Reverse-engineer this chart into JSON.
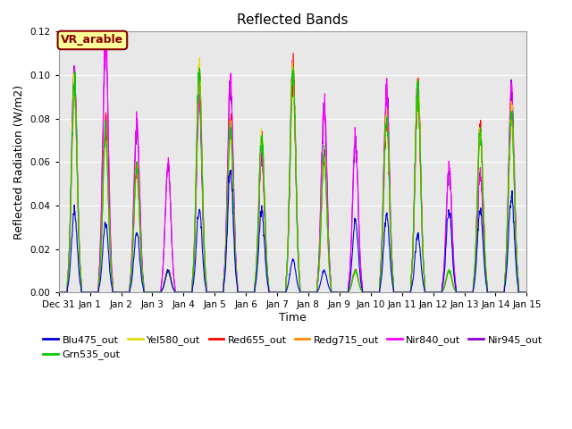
{
  "title": "Reflected Bands",
  "ylabel": "Reflected Radiation (W/m2)",
  "xlabel": "Time",
  "ylim": [
    0,
    0.12
  ],
  "background_color": "#e8e8e8",
  "annotation_text": "VR_arable",
  "annotation_facecolor": "#ffff99",
  "annotation_edgecolor": "#8b0000",
  "annotation_textcolor": "#8b0000",
  "series": [
    {
      "label": "Blu475_out",
      "color": "#0000dd"
    },
    {
      "label": "Grn535_out",
      "color": "#00cc00"
    },
    {
      "label": "Yel580_out",
      "color": "#dddd00"
    },
    {
      "label": "Red655_out",
      "color": "#ff0000"
    },
    {
      "label": "Redg715_out",
      "color": "#ff8800"
    },
    {
      "label": "Nir840_out",
      "color": "#ff00ff"
    },
    {
      "label": "Nir945_out",
      "color": "#8800cc"
    }
  ],
  "xtick_labels": [
    "Dec 31",
    "Jan 1",
    "Jan 2",
    "Jan 3",
    "Jan 4",
    "Jan 5",
    "Jan 6",
    "Jan 7",
    "Jan 8",
    "Jan 9",
    "Jan 10",
    "Jan 11",
    "Jan 12",
    "Jan 13",
    "Jan 14",
    "Jan 15"
  ],
  "day_peaks": {
    "Blu475_out": [
      0.038,
      0.032,
      0.028,
      0.01,
      0.038,
      0.055,
      0.038,
      0.015,
      0.01,
      0.033,
      0.036,
      0.027,
      0.038,
      0.039,
      0.045
    ],
    "Grn535_out": [
      0.095,
      0.072,
      0.058,
      0.01,
      0.1,
      0.075,
      0.071,
      0.101,
      0.063,
      0.01,
      0.08,
      0.094,
      0.01,
      0.073,
      0.084
    ],
    "Yel580_out": [
      0.095,
      0.072,
      0.058,
      0.01,
      0.1,
      0.075,
      0.071,
      0.101,
      0.063,
      0.01,
      0.08,
      0.094,
      0.01,
      0.073,
      0.084
    ],
    "Red655_out": [
      0.095,
      0.079,
      0.058,
      0.01,
      0.1,
      0.076,
      0.071,
      0.101,
      0.063,
      0.01,
      0.08,
      0.094,
      0.01,
      0.076,
      0.084
    ],
    "Redg715_out": [
      0.095,
      0.073,
      0.058,
      0.01,
      0.1,
      0.076,
      0.071,
      0.101,
      0.063,
      0.01,
      0.08,
      0.094,
      0.01,
      0.073,
      0.084
    ],
    "Nir840_out": [
      0.1,
      0.118,
      0.079,
      0.06,
      0.089,
      0.096,
      0.064,
      0.103,
      0.087,
      0.07,
      0.094,
      0.095,
      0.058,
      0.055,
      0.095
    ],
    "Nir945_out": [
      0.1,
      0.116,
      0.078,
      0.059,
      0.088,
      0.095,
      0.063,
      0.102,
      0.086,
      0.069,
      0.093,
      0.094,
      0.057,
      0.054,
      0.094
    ]
  }
}
